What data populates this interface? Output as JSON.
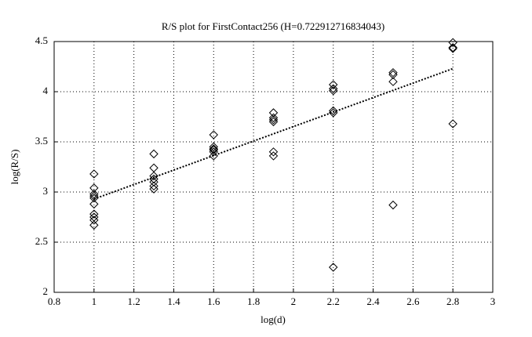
{
  "chart_data": {
    "type": "scatter",
    "title": "R/S plot for FirstContact256 (H=0.722912716834043)",
    "x_label": "log(d)",
    "y_label": "log(R/S)",
    "xlim": [
      0.8,
      3
    ],
    "ylim": [
      2,
      4.5
    ],
    "xticks": [
      0.8,
      1,
      1.2,
      1.4,
      1.6,
      1.8,
      2,
      2.2,
      2.4,
      2.6,
      2.8,
      3
    ],
    "yticks": [
      2,
      2.5,
      3,
      3.5,
      4,
      4.5
    ],
    "grid": true,
    "series": [
      {
        "color": "#000000",
        "marker": "diamond",
        "x": [
          1,
          1,
          1,
          1,
          1,
          1,
          1,
          1,
          1,
          1,
          1.3,
          1.3,
          1.3,
          1.3,
          1.3,
          1.3,
          1.3,
          1.6,
          1.6,
          1.6,
          1.6,
          1.6,
          1.6,
          1.9,
          1.9,
          1.9,
          1.9,
          1.9,
          1.9,
          2.2,
          2.2,
          2.2,
          2.2,
          2.2,
          2.2,
          2.5,
          2.5,
          2.5,
          2.5,
          2.8,
          2.8,
          2.8,
          2.8
        ],
        "values": [
          3.18,
          3.04,
          2.98,
          2.96,
          2.94,
          2.88,
          2.78,
          2.75,
          2.72,
          2.67,
          3.38,
          3.24,
          3.16,
          3.13,
          3.1,
          3.06,
          3.03,
          3.57,
          3.45,
          3.43,
          3.42,
          3.4,
          3.36,
          3.79,
          3.74,
          3.72,
          3.7,
          3.4,
          3.36,
          4.07,
          4.03,
          4.01,
          3.81,
          3.79,
          2.25,
          4.19,
          4.17,
          4.1,
          2.87,
          4.49,
          4.44,
          4.43,
          3.68
        ]
      },
      {
        "color": "#000000",
        "line_style": "dotted",
        "x": [
          1,
          2.8
        ],
        "values": [
          2.93,
          4.23
        ]
      }
    ]
  }
}
